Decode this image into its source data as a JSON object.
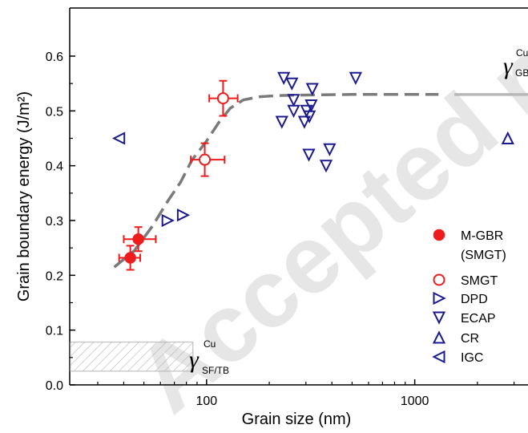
{
  "watermark": "Accepted manuscript",
  "chart_data": {
    "type": "scatter",
    "xscale": "log",
    "xlim": [
      22,
      3500
    ],
    "ylim": [
      0.0,
      0.65
    ],
    "xlabel": "Grain size (nm)",
    "ylabel": "Grain boundary energy (J/m²)",
    "x_ticks": [
      100,
      1000
    ],
    "y_ticks": [
      0.0,
      0.1,
      0.2,
      0.3,
      0.4,
      0.5,
      0.6
    ],
    "legend_position": "lower-right",
    "colors": {
      "red": "#ee1c1c",
      "navy": "#1b1b8f",
      "curve": "#7a7a7a",
      "hatch": "#b4b4b4"
    },
    "series": [
      {
        "name": "M-GBR (SMGT)",
        "marker": "filled-circle",
        "color": "#ee1c1c",
        "points": [
          {
            "x": 43,
            "y": 0.232,
            "xerr": [
              5,
              5
            ],
            "yerr": [
              0.022,
              0.022
            ]
          },
          {
            "x": 47,
            "y": 0.266,
            "xerr": [
              7,
              10
            ],
            "yerr": [
              0.022,
              0.022
            ]
          }
        ]
      },
      {
        "name": "SMGT",
        "marker": "open-circle",
        "color": "#ee1c1c",
        "points": [
          {
            "x": 98,
            "y": 0.411,
            "xerr": [
              14,
              24
            ],
            "yerr": [
              0.03,
              0.03
            ]
          },
          {
            "x": 120,
            "y": 0.523,
            "xerr": [
              17,
              21
            ],
            "yerr": [
              0.032,
              0.032
            ]
          }
        ]
      },
      {
        "name": "DPD",
        "marker": "triangle-right",
        "color": "#1b1b8f",
        "points": [
          {
            "x": 65,
            "y": 0.3
          },
          {
            "x": 77,
            "y": 0.31
          }
        ]
      },
      {
        "name": "ECAP",
        "marker": "triangle-down",
        "color": "#1b1b8f",
        "points": [
          {
            "x": 235,
            "y": 0.56
          },
          {
            "x": 257,
            "y": 0.55
          },
          {
            "x": 262,
            "y": 0.52
          },
          {
            "x": 262,
            "y": 0.5
          },
          {
            "x": 230,
            "y": 0.48
          },
          {
            "x": 295,
            "y": 0.48
          },
          {
            "x": 302,
            "y": 0.5
          },
          {
            "x": 312,
            "y": 0.49
          },
          {
            "x": 318,
            "y": 0.51
          },
          {
            "x": 322,
            "y": 0.54
          },
          {
            "x": 310,
            "y": 0.42
          },
          {
            "x": 390,
            "y": 0.43
          },
          {
            "x": 375,
            "y": 0.4
          },
          {
            "x": 520,
            "y": 0.56
          }
        ]
      },
      {
        "name": "CR",
        "marker": "triangle-up",
        "color": "#1b1b8f",
        "points": [
          {
            "x": 2800,
            "y": 0.45
          }
        ]
      },
      {
        "name": "IGC",
        "marker": "triangle-left",
        "color": "#1b1b8f",
        "points": [
          {
            "x": 38,
            "y": 0.45
          }
        ]
      }
    ],
    "fit_curve": {
      "style": "dashed",
      "points": [
        [
          36,
          0.215
        ],
        [
          45,
          0.245
        ],
        [
          55,
          0.29
        ],
        [
          65,
          0.335
        ],
        [
          75,
          0.37
        ],
        [
          85,
          0.41
        ],
        [
          100,
          0.445
        ],
        [
          115,
          0.48
        ],
        [
          130,
          0.505
        ],
        [
          150,
          0.52
        ],
        [
          180,
          0.526
        ],
        [
          220,
          0.528
        ],
        [
          300,
          0.529
        ],
        [
          500,
          0.53
        ],
        [
          900,
          0.53
        ],
        [
          1300,
          0.53
        ]
      ],
      "solid_extension": [
        [
          1550,
          0.53
        ],
        [
          3500,
          0.53
        ]
      ]
    },
    "annotations": [
      {
        "symbol": "γ",
        "sup": "Cu",
        "sub": "GB",
        "y": 0.53
      },
      {
        "symbol": "γ",
        "sup": "Cu",
        "sub": "SF/TB",
        "hatched_band": [
          0.025,
          0.078
        ],
        "band_x": [
          22,
          86
        ]
      }
    ]
  }
}
